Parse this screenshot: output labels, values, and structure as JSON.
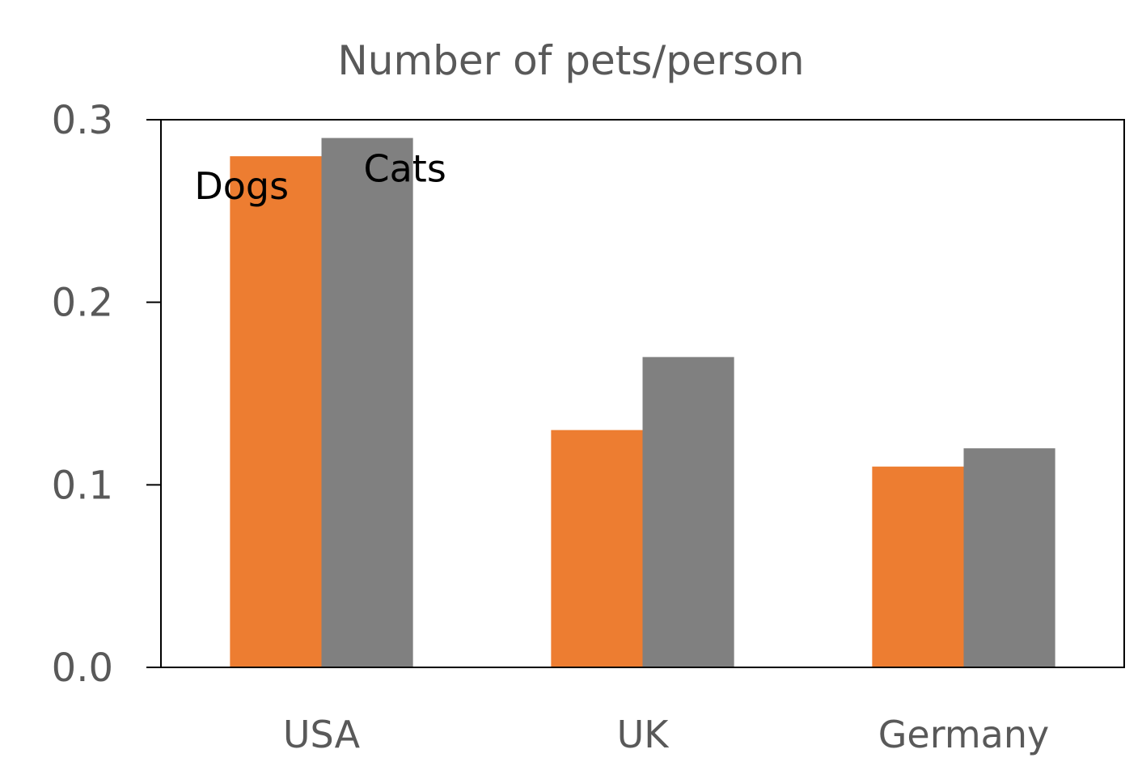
{
  "chart_data": {
    "type": "bar",
    "title": "Number of pets/person",
    "xlabel": "",
    "ylabel": "",
    "categories": [
      "USA",
      "UK",
      "Germany"
    ],
    "series": [
      {
        "name": "Dogs",
        "values": [
          0.28,
          0.13,
          0.11
        ],
        "color": "#ED7D31"
      },
      {
        "name": "Cats",
        "values": [
          0.29,
          0.17,
          0.12
        ],
        "color": "#808080"
      }
    ],
    "ylim": [
      0,
      0.3
    ],
    "yticks": [
      "0.0",
      "0.1",
      "0.2",
      "0.3"
    ],
    "grid": false,
    "legend": "none"
  }
}
